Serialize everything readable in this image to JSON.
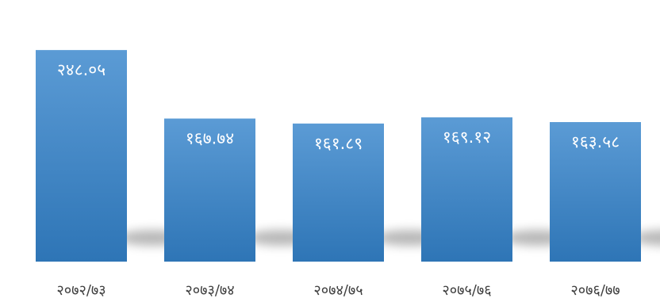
{
  "chart_data": {
    "type": "bar",
    "categories": [
      "२०७२/७३",
      "२०७३/७४",
      "२०७४/७५",
      "२०७५/७६",
      "२०७६/७७"
    ],
    "values": [
      248.05,
      167.74,
      161.89,
      169.12,
      163.58
    ],
    "value_labels": [
      "२४८.०५",
      "१६७.७४",
      "१६१.८९",
      "१६९.१२",
      "१६३.५८"
    ],
    "ylim": [
      0,
      290
    ],
    "grid": false,
    "legend": "none",
    "colors": {
      "bar_top": "#5b9bd5",
      "bar_bottom": "#2e75b6",
      "shadow": "#7f7f7f"
    }
  }
}
